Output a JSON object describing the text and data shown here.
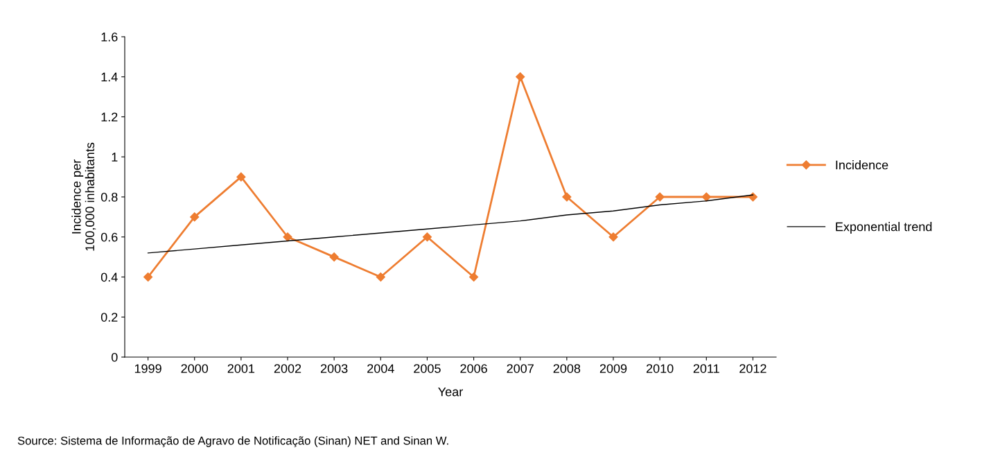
{
  "chart_data": {
    "type": "line",
    "xlabel": "Year",
    "ylabel": "Incidence per\n100,000 inhabitants",
    "categories": [
      "1999",
      "2000",
      "2001",
      "2002",
      "2003",
      "2004",
      "2005",
      "2006",
      "2007",
      "2008",
      "2009",
      "2010",
      "2011",
      "2012"
    ],
    "series": [
      {
        "name": "Incidence",
        "color": "#ee7d31",
        "marker": "diamond",
        "values": [
          0.4,
          0.7,
          0.9,
          0.6,
          0.5,
          0.4,
          0.6,
          0.4,
          1.4,
          0.8,
          0.6,
          0.8,
          0.8,
          0.8
        ]
      },
      {
        "name": "Exponential trend",
        "color": "#000000",
        "marker": "none",
        "values": [
          0.52,
          0.54,
          0.56,
          0.58,
          0.6,
          0.62,
          0.64,
          0.66,
          0.68,
          0.71,
          0.73,
          0.76,
          0.78,
          0.81
        ]
      }
    ],
    "ylim": [
      0,
      1.6
    ],
    "yticks": [
      0,
      0.2,
      0.4,
      0.6,
      0.8,
      {
        "value": 1,
        "label": "1"
      },
      1.2,
      1.4,
      1.6
    ],
    "grid": false,
    "legend": "right",
    "line_style": "solid",
    "annotations": [
      "Source: Sistema de Informação de Agravo de Notificação (Sinan) NET and Sinan W."
    ]
  }
}
